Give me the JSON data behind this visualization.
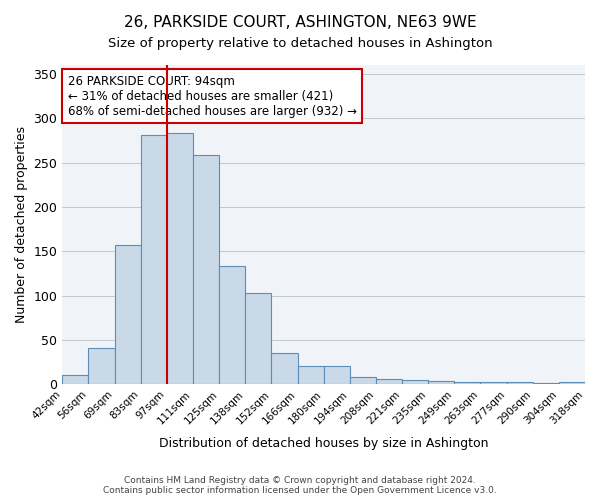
{
  "title1": "26, PARKSIDE COURT, ASHINGTON, NE63 9WE",
  "title2": "Size of property relative to detached houses in Ashington",
  "xlabel": "Distribution of detached houses by size in Ashington",
  "ylabel": "Number of detached properties",
  "bin_labels": [
    "42sqm",
    "56sqm",
    "69sqm",
    "83sqm",
    "97sqm",
    "111sqm",
    "125sqm",
    "138sqm",
    "152sqm",
    "166sqm",
    "180sqm",
    "194sqm",
    "208sqm",
    "221sqm",
    "235sqm",
    "249sqm",
    "263sqm",
    "277sqm",
    "290sqm",
    "304sqm",
    "318sqm"
  ],
  "bar_heights": [
    10,
    41,
    157,
    281,
    283,
    258,
    133,
    103,
    35,
    20,
    21,
    8,
    6,
    5,
    4,
    3,
    2,
    2,
    1,
    3
  ],
  "bar_color": "#c9d9e8",
  "bar_edge_color": "#5b8db8",
  "vline_color": "#cc0000",
  "annotation_title": "26 PARKSIDE COURT: 94sqm",
  "annotation_line1": "← 31% of detached houses are smaller (421)",
  "annotation_line2": "68% of semi-detached houses are larger (932) →",
  "annotation_box_color": "#cc0000",
  "ylim": [
    0,
    360
  ],
  "yticks": [
    0,
    50,
    100,
    150,
    200,
    250,
    300,
    350
  ],
  "footer1": "Contains HM Land Registry data © Crown copyright and database right 2024.",
  "footer2": "Contains public sector information licensed under the Open Government Licence v3.0.",
  "bg_color": "#f0f4f8"
}
